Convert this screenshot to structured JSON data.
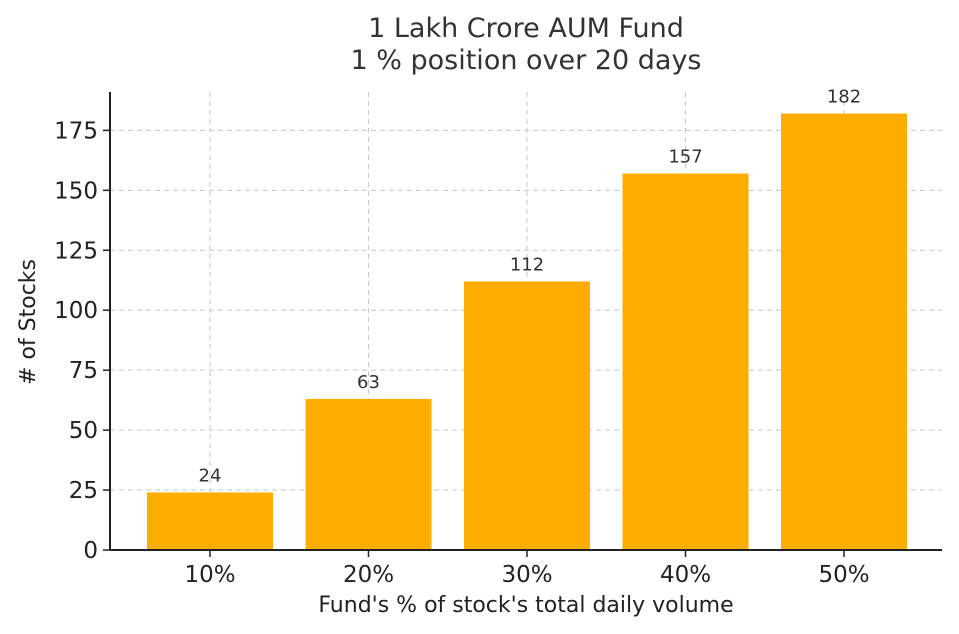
{
  "chart_data": {
    "type": "bar",
    "title": "1 Lakh Crore AUM Fund",
    "subtitle": "1 % position over 20 days",
    "xlabel": "Fund's % of stock's total daily volume",
    "ylabel": "# of Stocks",
    "categories": [
      "10%",
      "20%",
      "30%",
      "40%",
      "50%"
    ],
    "values": [
      24,
      63,
      112,
      157,
      182
    ],
    "ylim": [
      0,
      191
    ],
    "yticks": [
      0,
      25,
      50,
      75,
      100,
      125,
      150,
      175
    ],
    "grid": true,
    "bar_color": "#FFAE00"
  }
}
